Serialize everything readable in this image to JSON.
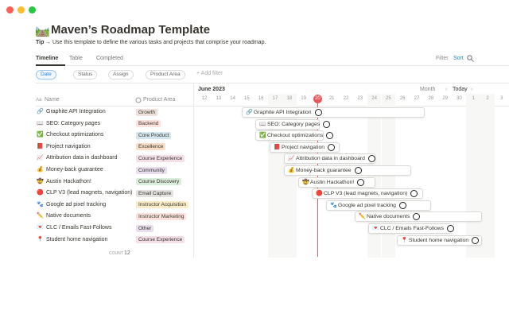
{
  "header": {
    "icon": "🛤️",
    "title": "Maven’s Roadmap Template",
    "tip_label": "Tip",
    "tip_text": "→ Use this template to define the various tasks and projects that comprise your roadmap."
  },
  "tabs": [
    "Timeline",
    "Table",
    "Completed"
  ],
  "toolbar": {
    "filter": "Filter",
    "sort": "Sort"
  },
  "filters": [
    "Date",
    "Status",
    "Assign",
    "Product Area"
  ],
  "add_filter": "+ Add filter",
  "timeline": {
    "month": "June 2023",
    "view": "Month",
    "today": "Today",
    "days": [
      12,
      13,
      14,
      15,
      16,
      17,
      18,
      19,
      20,
      21,
      22,
      23,
      24,
      25,
      26,
      27,
      28,
      29,
      30,
      1,
      2,
      3
    ]
  },
  "table": {
    "columns": [
      {
        "icon": "Aa",
        "label": "Name"
      },
      {
        "label": "Product Area"
      }
    ],
    "rows": [
      {
        "icon": "🔗",
        "name": "Graphite API Integration",
        "area": "Growth",
        "area_color": "#eee0da"
      },
      {
        "icon": "📖",
        "name": "SEO: Category pages",
        "area": "Backend",
        "area_color": "#ffe2dd"
      },
      {
        "icon": "✅",
        "name": "Checkout optimizations",
        "area": "Core Product",
        "area_color": "#d3e5ef"
      },
      {
        "icon": "📕",
        "name": "Project navigation",
        "area": "Excellence",
        "area_color": "#fadec9"
      },
      {
        "icon": "📈",
        "name": "Attribution data in dashboard",
        "area": "Course Experience",
        "area_color": "#f5e0e9"
      },
      {
        "icon": "💰",
        "name": "Money-back guarantee",
        "area": "Community",
        "area_color": "#e8deee"
      },
      {
        "icon": "🤠",
        "name": "Austin Hackathon!",
        "area": "Course Discovery",
        "area_color": "#dbeddb"
      },
      {
        "icon": "🔴",
        "name": "CLP V3 (lead magnets, navigation)",
        "area": "Email Capture",
        "area_color": "#e3e2e0"
      },
      {
        "icon": "🐾",
        "name": "Google ad pixel tracking",
        "area": "Instructor Acquisition",
        "area_color": "#fdecc8"
      },
      {
        "icon": "✏️",
        "name": "Native documents",
        "area": "Instructor Marketing",
        "area_color": "#ffe2dd"
      },
      {
        "icon": "💌",
        "name": "CLC / Emails Fast-Follows",
        "area": "Other",
        "area_color": "#e8deee"
      },
      {
        "icon": "📍",
        "name": "Student home navigation",
        "area": "Course Experience",
        "area_color": "#f5e0e9"
      }
    ],
    "count_label": "COUNT",
    "count": 12
  }
}
